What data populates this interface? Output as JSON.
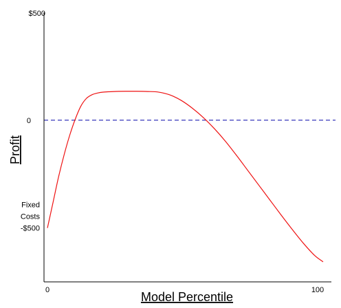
{
  "chart_data": {
    "type": "line",
    "title": "",
    "xlabel": "Model Percentile",
    "ylabel": "Profit",
    "xlim": [
      0,
      100
    ],
    "ylim": [
      -750,
      500
    ],
    "x_ticks": [
      {
        "value": 0,
        "label": "0"
      },
      {
        "value": 100,
        "label": "100"
      }
    ],
    "y_ticks": [
      {
        "value": 500,
        "label": "$500"
      },
      {
        "value": 0,
        "label": "0"
      },
      {
        "value": -500,
        "lines": [
          "Fixed",
          "Costs",
          "-$500"
        ]
      }
    ],
    "reference_line": {
      "value": 0,
      "style": "dashed",
      "color": "#1f1fb4"
    },
    "series": [
      {
        "color": "#ee1111",
        "x": [
          0,
          2,
          4,
          6,
          8,
          10,
          12,
          14,
          16,
          18,
          20,
          24,
          28,
          32,
          36,
          40,
          44,
          48,
          52,
          56,
          60,
          64,
          68,
          72,
          76,
          80,
          84,
          88,
          92,
          96,
          99
        ],
        "y": [
          -500,
          -382,
          -263,
          -160,
          -70,
          5,
          65,
          101,
          118,
          126,
          130,
          133,
          134,
          134,
          133,
          130,
          117,
          92,
          56,
          12,
          -40,
          -99,
          -165,
          -234,
          -303,
          -372,
          -441,
          -508,
          -572,
          -628,
          -657
        ]
      }
    ]
  }
}
